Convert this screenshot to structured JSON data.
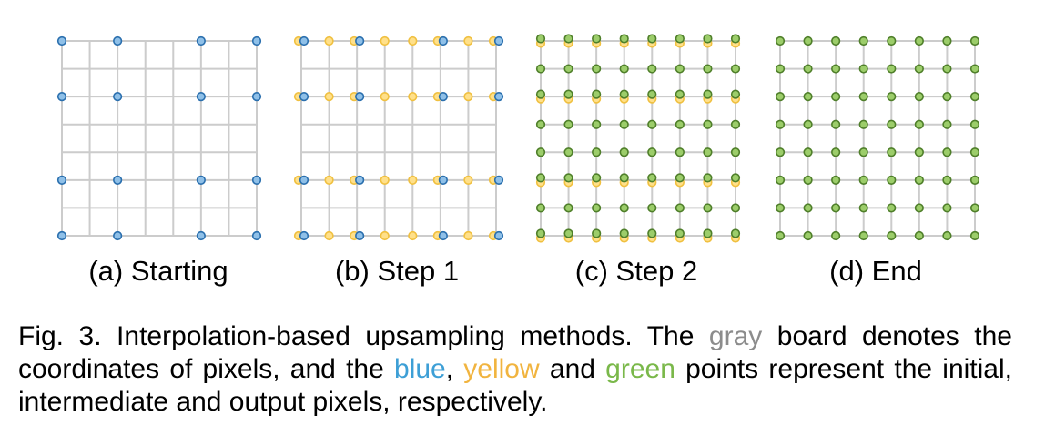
{
  "panels": [
    {
      "label": "(a) Starting",
      "stage": "starting"
    },
    {
      "label": "(b) Step 1",
      "stage": "step1"
    },
    {
      "label": "(c) Step 2",
      "stage": "step2"
    },
    {
      "label": "(d) End",
      "stage": "end"
    }
  ],
  "colors": {
    "grid": "#cccccc",
    "blue_fill": "#8fc0e8",
    "blue_stroke": "#2a6fae",
    "yellow_fill": "#ffe08a",
    "yellow_stroke": "#f0c040",
    "green_fill": "#9ccd6a",
    "green_stroke": "#4f7f2a",
    "caption_gray": "#8c8c8c",
    "caption_blue": "#3d9fd6",
    "caption_yellow": "#f1b43f",
    "caption_green": "#7ab84a"
  },
  "caption": {
    "prefix": "Fig. 3. Interpolation-based upsampling methods. The ",
    "gray": "gray",
    "mid1": " board denotes the coordinates of pixels, and the ",
    "blue": "blue",
    "sep1": ", ",
    "yellow": "yellow",
    "mid2": " and ",
    "green": "green",
    "suffix": " points represent the initial, intermediate and output pixels, respectively."
  }
}
